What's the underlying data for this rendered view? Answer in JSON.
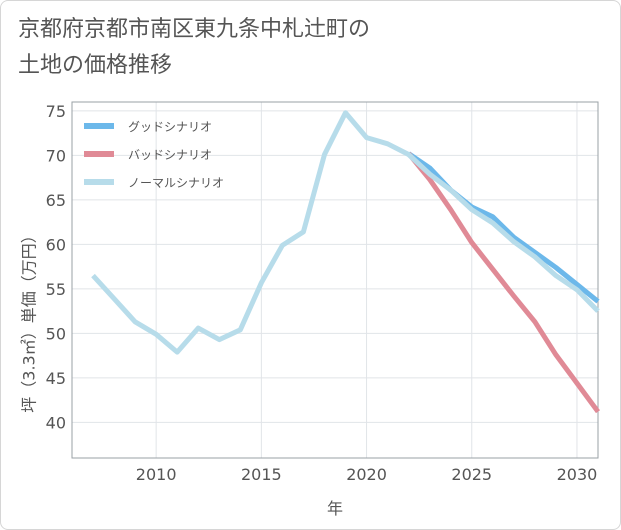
{
  "title": {
    "line1": "京都府京都市南区東九条中札辻町の",
    "line2": "土地の価格推移"
  },
  "chart_data": {
    "type": "line",
    "xlabel": "年",
    "ylabel": "坪（3.3㎡）単価（万円）",
    "xlim": [
      2006,
      2031
    ],
    "ylim": [
      36,
      76
    ],
    "xticks": [
      2010,
      2015,
      2020,
      2025,
      2030
    ],
    "yticks": [
      40,
      45,
      50,
      55,
      60,
      65,
      70,
      75
    ],
    "grid": true,
    "legend_position": "top-left",
    "series": [
      {
        "name": "グッドシナリオ",
        "color": "#6cb8ea",
        "x": [
          2022,
          2023,
          2024,
          2025,
          2026,
          2027,
          2028,
          2029,
          2030,
          2031
        ],
        "y": [
          70.2,
          68.6,
          66.1,
          64.2,
          63.1,
          60.8,
          59.1,
          57.4,
          55.5,
          53.6
        ]
      },
      {
        "name": "バッドシナリオ",
        "color": "#e08a96",
        "x": [
          2022,
          2023,
          2024,
          2025,
          2026,
          2027,
          2028,
          2029,
          2030,
          2031
        ],
        "y": [
          70.2,
          67.3,
          63.9,
          60.2,
          57.2,
          54.2,
          51.3,
          47.6,
          44.4,
          41.2
        ]
      },
      {
        "name": "ノーマルシナリオ",
        "color": "#b7dcea",
        "x": [
          2007,
          2008,
          2009,
          2010,
          2011,
          2012,
          2013,
          2014,
          2015,
          2016,
          2017,
          2018,
          2019,
          2020,
          2021,
          2022,
          2023,
          2024,
          2025,
          2026,
          2027,
          2028,
          2029,
          2030,
          2031
        ],
        "y": [
          56.5,
          53.9,
          51.3,
          49.9,
          47.9,
          50.6,
          49.3,
          50.4,
          55.7,
          59.9,
          61.4,
          70.1,
          74.8,
          72.0,
          71.3,
          70.1,
          67.9,
          66.1,
          63.9,
          62.4,
          60.3,
          58.6,
          56.5,
          54.9,
          52.5
        ]
      }
    ]
  }
}
